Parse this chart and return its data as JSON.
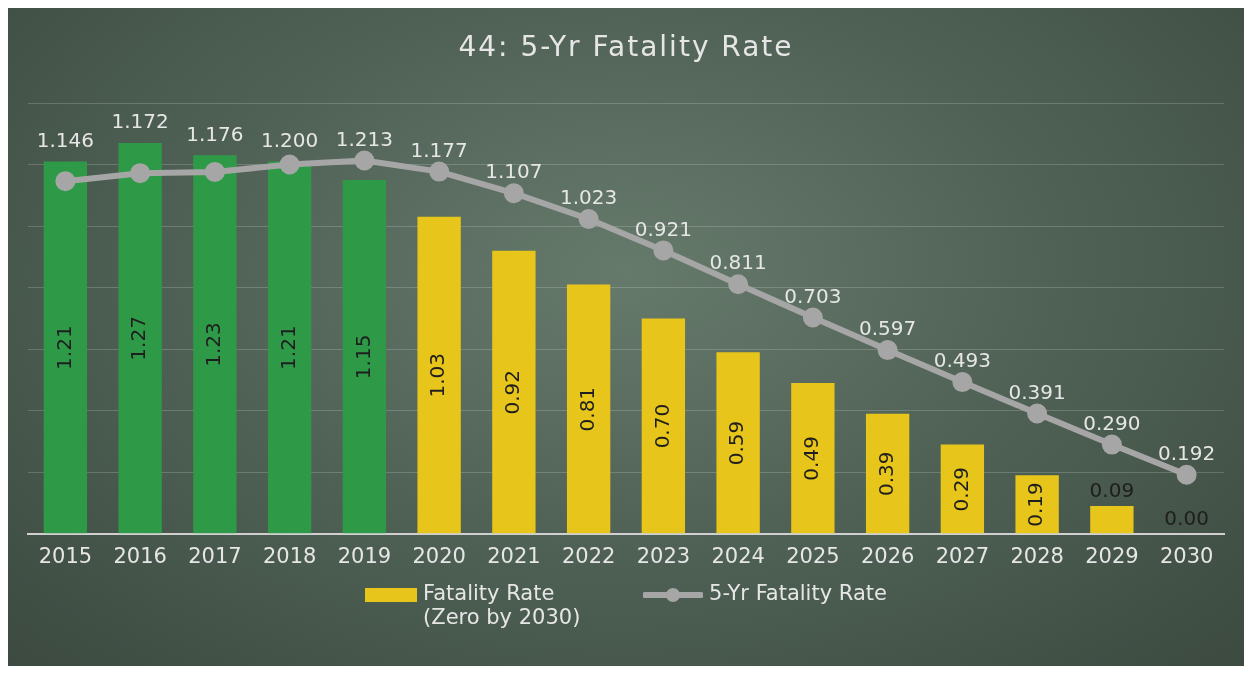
{
  "chart_data": {
    "type": "bar",
    "title": "44: 5-Yr Fatality Rate",
    "categories": [
      "2015",
      "2016",
      "2017",
      "2018",
      "2019",
      "2020",
      "2021",
      "2022",
      "2023",
      "2024",
      "2025",
      "2026",
      "2027",
      "2028",
      "2029",
      "2030"
    ],
    "series": [
      {
        "name": "Fatality Rate (Zero by 2030)",
        "colors": [
          "#2e9a48",
          "#2e9a48",
          "#2e9a48",
          "#2e9a48",
          "#2e9a48",
          "#e8c51a",
          "#e8c51a",
          "#e8c51a",
          "#e8c51a",
          "#e8c51a",
          "#e8c51a",
          "#e8c51a",
          "#e8c51a",
          "#e8c51a",
          "#e8c51a",
          "#e8c51a"
        ],
        "color": "#e8c51a",
        "values": [
          1.21,
          1.27,
          1.23,
          1.21,
          1.15,
          1.03,
          0.92,
          0.81,
          0.7,
          0.59,
          0.49,
          0.39,
          0.29,
          0.19,
          0.09,
          0.0
        ],
        "value_labels": [
          "1.21",
          "1.27",
          "1.23",
          "1.21",
          "1.15",
          "1.03",
          "0.92",
          "0.81",
          "0.70",
          "0.59",
          "0.49",
          "0.39",
          "0.29",
          "0.19",
          "0.09",
          "0.00"
        ]
      },
      {
        "name": "5-Yr Fatality Rate",
        "type": "line",
        "color": "#a6a6a6",
        "marker": "circle",
        "values": [
          1.146,
          1.172,
          1.176,
          1.2,
          1.213,
          1.177,
          1.107,
          1.023,
          0.921,
          0.811,
          0.703,
          0.597,
          0.493,
          0.391,
          0.29,
          0.192
        ],
        "value_labels": [
          "1.146",
          "1.172",
          "1.176",
          "1.200",
          "1.213",
          "1.177",
          "1.107",
          "1.023",
          "0.921",
          "0.811",
          "0.703",
          "0.597",
          "0.493",
          "0.391",
          "0.290",
          "0.192"
        ]
      }
    ],
    "ylim": [
      0,
      1.4
    ],
    "yticks": [
      {
        "value": 0,
        "label": null
      },
      {
        "value": 0.2,
        "label": null
      },
      {
        "value": 0.4,
        "label": null
      },
      {
        "value": 0.6,
        "label": null
      },
      {
        "value": 0.8,
        "label": null
      },
      {
        "value": 1.0,
        "label": null
      },
      {
        "value": 1.2,
        "label": null
      },
      {
        "value": 1.4,
        "label": null
      }
    ],
    "tick_labels": "x",
    "grid": "y",
    "legend": "bottom"
  }
}
